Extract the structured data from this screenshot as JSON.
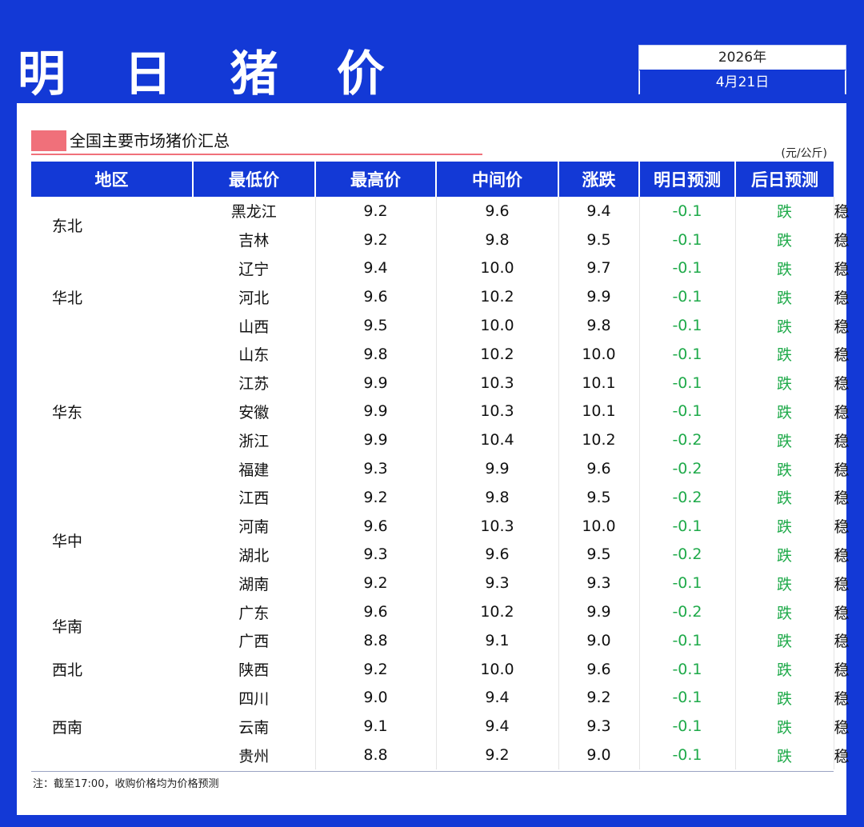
{
  "title": "明 日 猪 价",
  "date": {
    "year": "2026年",
    "day": "4月21日"
  },
  "section": {
    "title": "全国主要市场猪价汇总",
    "unit": "(元/公斤)"
  },
  "colors": {
    "background": "#1339d6",
    "accent": "#f0707a",
    "down": "#1faa4a"
  },
  "table": {
    "headers": [
      "地区",
      "最低价",
      "最高价",
      "中间价",
      "涨跌",
      "明日预测",
      "后日预测"
    ],
    "groups": [
      {
        "region": "东北",
        "rows": [
          {
            "province": "黑龙江",
            "low": "9.2",
            "high": "9.6",
            "mid": "9.4",
            "change": "-0.1",
            "tomorrow": "跌",
            "after": "稳"
          },
          {
            "province": "吉林",
            "low": "9.2",
            "high": "9.8",
            "mid": "9.5",
            "change": "-0.1",
            "tomorrow": "跌",
            "after": "稳"
          }
        ]
      },
      {
        "region": "华北",
        "rows": [
          {
            "province": "辽宁",
            "low": "9.4",
            "high": "10.0",
            "mid": "9.7",
            "change": "-0.1",
            "tomorrow": "跌",
            "after": "稳"
          },
          {
            "province": "河北",
            "low": "9.6",
            "high": "10.2",
            "mid": "9.9",
            "change": "-0.1",
            "tomorrow": "跌",
            "after": "稳"
          },
          {
            "province": "山西",
            "low": "9.5",
            "high": "10.0",
            "mid": "9.8",
            "change": "-0.1",
            "tomorrow": "跌",
            "after": "稳"
          }
        ]
      },
      {
        "region": "华东",
        "rows": [
          {
            "province": "山东",
            "low": "9.8",
            "high": "10.2",
            "mid": "10.0",
            "change": "-0.1",
            "tomorrow": "跌",
            "after": "稳"
          },
          {
            "province": "江苏",
            "low": "9.9",
            "high": "10.3",
            "mid": "10.1",
            "change": "-0.1",
            "tomorrow": "跌",
            "after": "稳"
          },
          {
            "province": "安徽",
            "low": "9.9",
            "high": "10.3",
            "mid": "10.1",
            "change": "-0.1",
            "tomorrow": "跌",
            "after": "稳"
          },
          {
            "province": "浙江",
            "low": "9.9",
            "high": "10.4",
            "mid": "10.2",
            "change": "-0.2",
            "tomorrow": "跌",
            "after": "稳"
          },
          {
            "province": "福建",
            "low": "9.3",
            "high": "9.9",
            "mid": "9.6",
            "change": "-0.2",
            "tomorrow": "跌",
            "after": "稳"
          }
        ]
      },
      {
        "region": "华中",
        "rows": [
          {
            "province": "江西",
            "low": "9.2",
            "high": "9.8",
            "mid": "9.5",
            "change": "-0.2",
            "tomorrow": "跌",
            "after": "稳"
          },
          {
            "province": "河南",
            "low": "9.6",
            "high": "10.3",
            "mid": "10.0",
            "change": "-0.1",
            "tomorrow": "跌",
            "after": "稳"
          },
          {
            "province": "湖北",
            "low": "9.3",
            "high": "9.6",
            "mid": "9.5",
            "change": "-0.2",
            "tomorrow": "跌",
            "after": "稳"
          },
          {
            "province": "湖南",
            "low": "9.2",
            "high": "9.3",
            "mid": "9.3",
            "change": "-0.1",
            "tomorrow": "跌",
            "after": "稳"
          }
        ]
      },
      {
        "region": "华南",
        "rows": [
          {
            "province": "广东",
            "low": "9.6",
            "high": "10.2",
            "mid": "9.9",
            "change": "-0.2",
            "tomorrow": "跌",
            "after": "稳"
          },
          {
            "province": "广西",
            "low": "8.8",
            "high": "9.1",
            "mid": "9.0",
            "change": "-0.1",
            "tomorrow": "跌",
            "after": "稳"
          }
        ]
      },
      {
        "region": "西北",
        "rows": [
          {
            "province": "陕西",
            "low": "9.2",
            "high": "10.0",
            "mid": "9.6",
            "change": "-0.1",
            "tomorrow": "跌",
            "after": "稳"
          }
        ]
      },
      {
        "region": "西南",
        "rows": [
          {
            "province": "四川",
            "low": "9.0",
            "high": "9.4",
            "mid": "9.2",
            "change": "-0.1",
            "tomorrow": "跌",
            "after": "稳"
          },
          {
            "province": "云南",
            "low": "9.1",
            "high": "9.4",
            "mid": "9.3",
            "change": "-0.1",
            "tomorrow": "跌",
            "after": "稳"
          },
          {
            "province": "贵州",
            "low": "8.8",
            "high": "9.2",
            "mid": "9.0",
            "change": "-0.1",
            "tomorrow": "跌",
            "after": "稳"
          }
        ]
      }
    ]
  },
  "footnote": "注：截至17:00，收购价格均为价格预测"
}
